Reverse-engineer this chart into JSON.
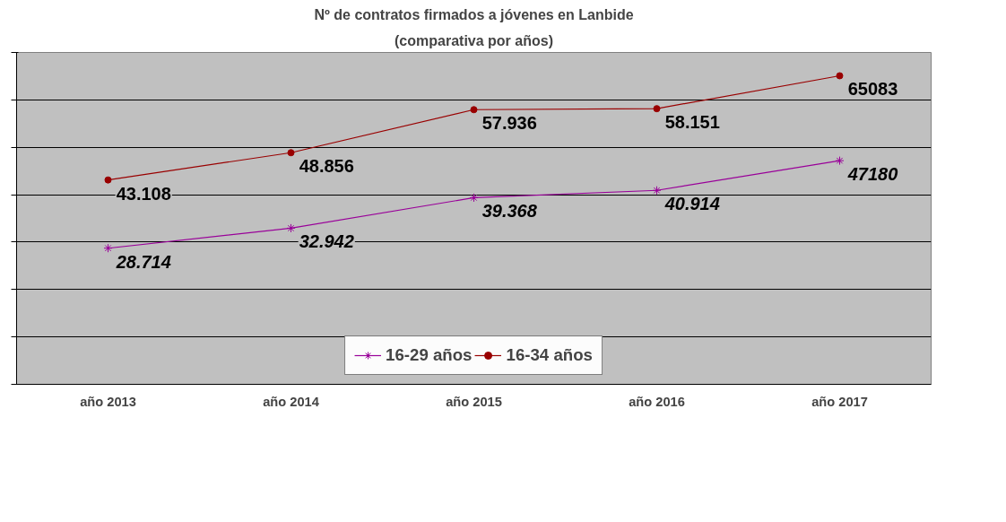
{
  "chart_data": {
    "type": "line",
    "title": "Nº de contratos firmados a jóvenes en Lanbide",
    "subtitle": "(comparativa por años)",
    "categories": [
      "año 2013",
      "año 2014",
      "año 2015",
      "año 2016",
      "año 2017"
    ],
    "series": [
      {
        "name": "16-29 años",
        "color": "#990099",
        "marker": "cross",
        "values": [
          28714,
          32942,
          39368,
          40914,
          47180
        ],
        "value_labels": [
          "28.714",
          "32.942",
          "39.368",
          "40.914",
          "47180"
        ]
      },
      {
        "name": "16-34 años",
        "color": "#990000",
        "marker": "circle",
        "values": [
          43108,
          48856,
          57936,
          58151,
          65083
        ],
        "value_labels": [
          "43.108",
          "48.856",
          "57.936",
          "58.151",
          "65083"
        ]
      }
    ],
    "ylim": [
      0,
      70000
    ],
    "yticks": [
      {
        "value": 0,
        "label": null
      },
      {
        "value": 10000,
        "label": null
      },
      {
        "value": 20000,
        "label": null
      },
      {
        "value": 30000,
        "label": null
      },
      {
        "value": 40000,
        "label": null
      },
      {
        "value": 50000,
        "label": null
      },
      {
        "value": 60000,
        "label": null
      },
      {
        "value": 70000,
        "label": null
      }
    ],
    "tick_labels": "x",
    "grid": "y",
    "legend": "bottom",
    "line_style": "solid"
  }
}
